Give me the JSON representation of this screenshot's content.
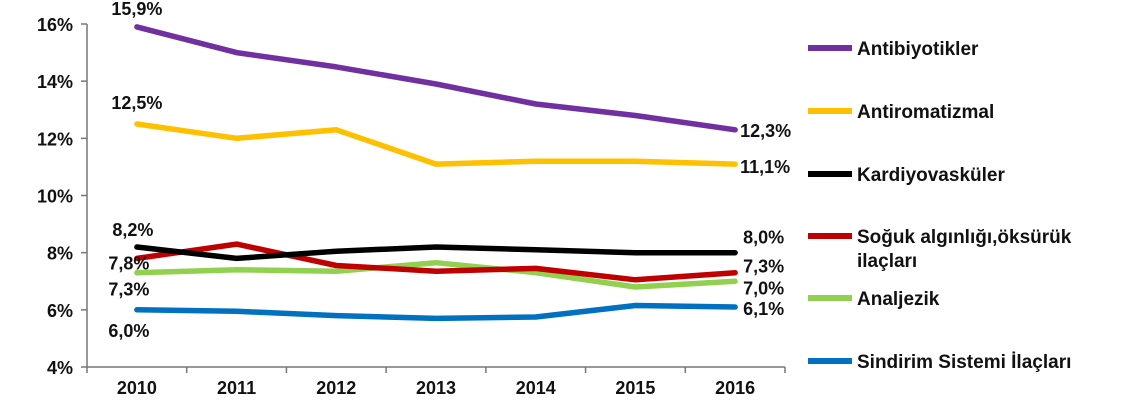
{
  "chart_data": {
    "type": "line",
    "x": [
      "2010",
      "2011",
      "2012",
      "2013",
      "2014",
      "2015",
      "2016"
    ],
    "ylim": [
      4,
      16
    ],
    "yticks": [
      "4%",
      "6%",
      "8%",
      "10%",
      "12%",
      "14%",
      "16%"
    ],
    "grid": false,
    "legend_position": "right",
    "series": [
      {
        "name": "Antibiyotikler",
        "color": "#7030a0",
        "values": [
          15.9,
          15.0,
          14.5,
          13.9,
          13.2,
          12.8,
          12.3
        ]
      },
      {
        "name": "Antiromatizmal",
        "color": "#ffc000",
        "values": [
          12.5,
          12.0,
          12.3,
          11.1,
          11.2,
          11.2,
          11.1
        ]
      },
      {
        "name": "Kardiyovasküler",
        "color": "#000000",
        "values": [
          8.2,
          7.8,
          8.05,
          8.2,
          8.1,
          8.0,
          8.0
        ]
      },
      {
        "name": "Soğuk algınlığı,öksürük ilaçları",
        "color": "#c00000",
        "values": [
          7.8,
          8.3,
          7.55,
          7.35,
          7.45,
          7.05,
          7.3
        ]
      },
      {
        "name": "Analjezik",
        "color": "#92d050",
        "values": [
          7.3,
          7.4,
          7.35,
          7.65,
          7.3,
          6.8,
          7.0
        ]
      },
      {
        "name": "Sindirim Sistemi İlaçları",
        "color": "#0070c0",
        "values": [
          6.0,
          5.95,
          5.8,
          5.7,
          5.75,
          6.15,
          6.1
        ]
      }
    ],
    "data_labels": [
      {
        "text": "15,9%",
        "series": 0,
        "index": 0
      },
      {
        "text": "12,5%",
        "series": 1,
        "index": 0
      },
      {
        "text": "8,2%",
        "series": 2,
        "index": 0
      },
      {
        "text": "7,8%",
        "series": 3,
        "index": 0
      },
      {
        "text": "7,3%",
        "series": 4,
        "index": 0
      },
      {
        "text": "6,0%",
        "series": 5,
        "index": 0
      },
      {
        "text": "12,3%",
        "series": 0,
        "index": 6
      },
      {
        "text": "11,1%",
        "series": 1,
        "index": 6
      },
      {
        "text": "8,0%",
        "series": 2,
        "index": 6
      },
      {
        "text": "7,3%",
        "series": 3,
        "index": 6
      },
      {
        "text": "7,0%",
        "series": 4,
        "index": 6
      },
      {
        "text": "6,1%",
        "series": 5,
        "index": 6
      }
    ]
  }
}
